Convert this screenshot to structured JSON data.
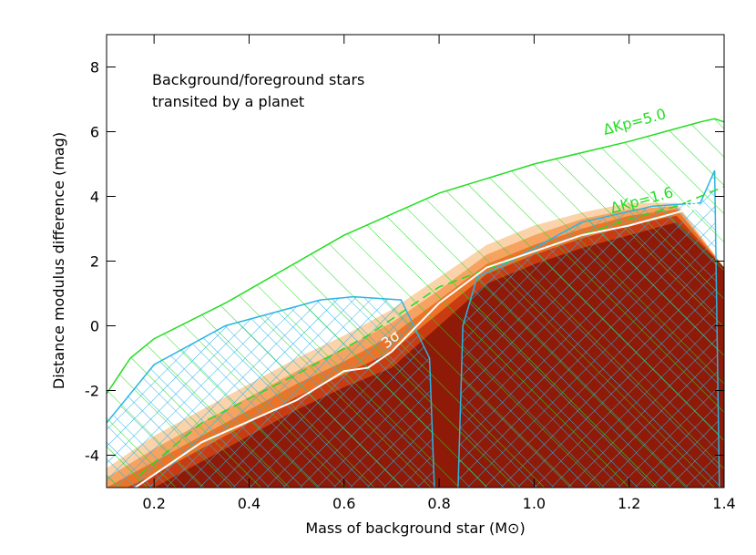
{
  "chart_data": {
    "type": "contour",
    "annotation": [
      "Background/foreground stars",
      "transited by a planet"
    ],
    "x_label": "Mass of background star (M⊙)",
    "y_label": "Distance modulus difference (mag)",
    "xlim": [
      0.1,
      1.4
    ],
    "ylim": [
      -5,
      9
    ],
    "xticks": [
      0.2,
      0.4,
      0.6,
      0.8,
      {
        "value": 1,
        "label": "1.0"
      },
      1.2,
      1.4
    ],
    "yticks": [
      -4,
      -2,
      0,
      2,
      4,
      6,
      8
    ],
    "levels": {
      "x": [
        0.1,
        0.2,
        0.3,
        0.4,
        0.5,
        0.6,
        0.7,
        0.8,
        0.9,
        1.0,
        1.1,
        1.2,
        1.3,
        1.4
      ],
      "series": [
        {
          "color": "#fbd3aa",
          "values": [
            -4.4,
            -3.4,
            -2.6,
            -1.8,
            -1.0,
            -0.3,
            0.5,
            1.5,
            2.5,
            3.1,
            3.5,
            3.8,
            3.8,
            1.8
          ]
        },
        {
          "color": "#f6a261",
          "values": [
            -4.7,
            -3.8,
            -3.0,
            -2.2,
            -1.4,
            -0.7,
            0.1,
            1.1,
            2.2,
            2.8,
            3.3,
            3.6,
            3.7,
            1.8
          ]
        },
        {
          "color": "#ec7428",
          "values": [
            -5.0,
            -4.2,
            -3.4,
            -2.6,
            -1.8,
            -1.1,
            -0.3,
            0.8,
            1.9,
            2.5,
            3.0,
            3.4,
            3.6,
            1.8
          ]
        },
        {
          "color": "#c93c12",
          "values": [
            -5.3,
            -4.6,
            -3.8,
            -3.0,
            -2.2,
            -1.5,
            -0.8,
            0.4,
            1.6,
            2.2,
            2.7,
            3.1,
            3.4,
            1.8
          ]
        },
        {
          "color": "#8e1a07",
          "values": [
            -5.6,
            -5.0,
            -4.2,
            -3.4,
            -2.6,
            -1.9,
            -1.3,
            0.0,
            1.3,
            1.9,
            2.4,
            2.8,
            3.2,
            1.8
          ]
        }
      ]
    },
    "regions": [
      {
        "color": "#2ab4e6",
        "x": [
          0.1,
          0.2,
          0.35,
          0.55,
          0.62,
          0.72,
          0.78,
          0.79
        ],
        "values": [
          -3,
          -1.2,
          0,
          0.8,
          0.9,
          0.8,
          -1,
          -5
        ]
      },
      {
        "color": "#2ab4e6",
        "x": [
          0.84,
          0.85,
          0.88,
          0.95,
          1.1,
          1.25,
          1.35,
          1.38,
          1.39
        ],
        "values": [
          -5,
          0,
          1.5,
          2.0,
          3.2,
          3.7,
          3.8,
          4.8,
          -5
        ]
      },
      {
        "color": "#22dd22",
        "x": [
          0.1,
          0.15,
          0.2,
          0.35,
          0.6,
          0.8,
          1.0,
          1.2,
          1.35,
          1.38,
          1.4
        ],
        "values": [
          -2.1,
          -1,
          -0.4,
          0.7,
          2.8,
          4.1,
          5.0,
          5.7,
          6.3,
          6.4,
          6.3
        ]
      }
    ],
    "curves": [
      {
        "label": "ΔKp=5.0",
        "color": "#22dd22",
        "dashed": false,
        "x": [
          0.1,
          0.15,
          0.2,
          0.35,
          0.6,
          0.8,
          1.0,
          1.2,
          1.35,
          1.38,
          1.4
        ],
        "values": [
          -2.1,
          -1,
          -0.4,
          0.7,
          2.8,
          4.1,
          5.0,
          5.7,
          6.3,
          6.4,
          6.3
        ]
      },
      {
        "label": "ΔKp=1.6",
        "color": "#22dd22",
        "dashed": true,
        "x": [
          0.17,
          0.3,
          0.5,
          0.65,
          0.8,
          1.0,
          1.2,
          1.3,
          1.4
        ],
        "values": [
          -4.6,
          -3,
          -1.5,
          -0.3,
          1.2,
          2.3,
          3.3,
          3.7,
          4.3
        ]
      },
      {
        "label": "3σ",
        "color": "#ffffff",
        "dashed": false,
        "x": [
          0.16,
          0.3,
          0.5,
          0.6,
          0.65,
          0.7,
          0.8,
          0.9,
          1.0,
          1.1,
          1.2,
          1.3,
          1.35
        ],
        "values": [
          -5,
          -3.6,
          -2.3,
          -1.4,
          -1.3,
          -0.8,
          0.7,
          1.8,
          2.3,
          2.8,
          3.1,
          3.5,
          3.7
        ]
      }
    ]
  }
}
